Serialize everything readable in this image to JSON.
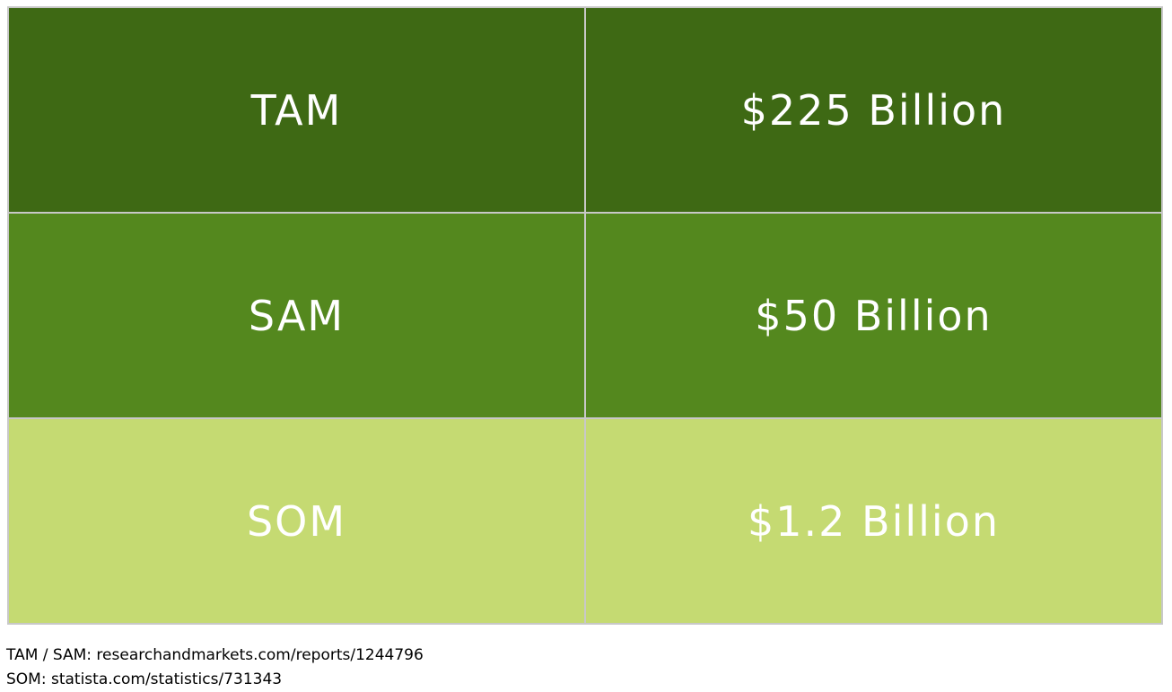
{
  "rows": [
    {
      "label": "TAM",
      "value": "$225 Billion",
      "color": "#3e6914"
    },
    {
      "label": "SAM",
      "value": "$50 Billion",
      "color": "#54881e"
    },
    {
      "label": "SOM",
      "value": "$1.2 Billion",
      "color": "#c5da72"
    }
  ],
  "sources": {
    "line1": "TAM / SAM: researchandmarkets.com/reports/1244796",
    "line2": "SOM: statista.com/statistics/731343"
  }
}
